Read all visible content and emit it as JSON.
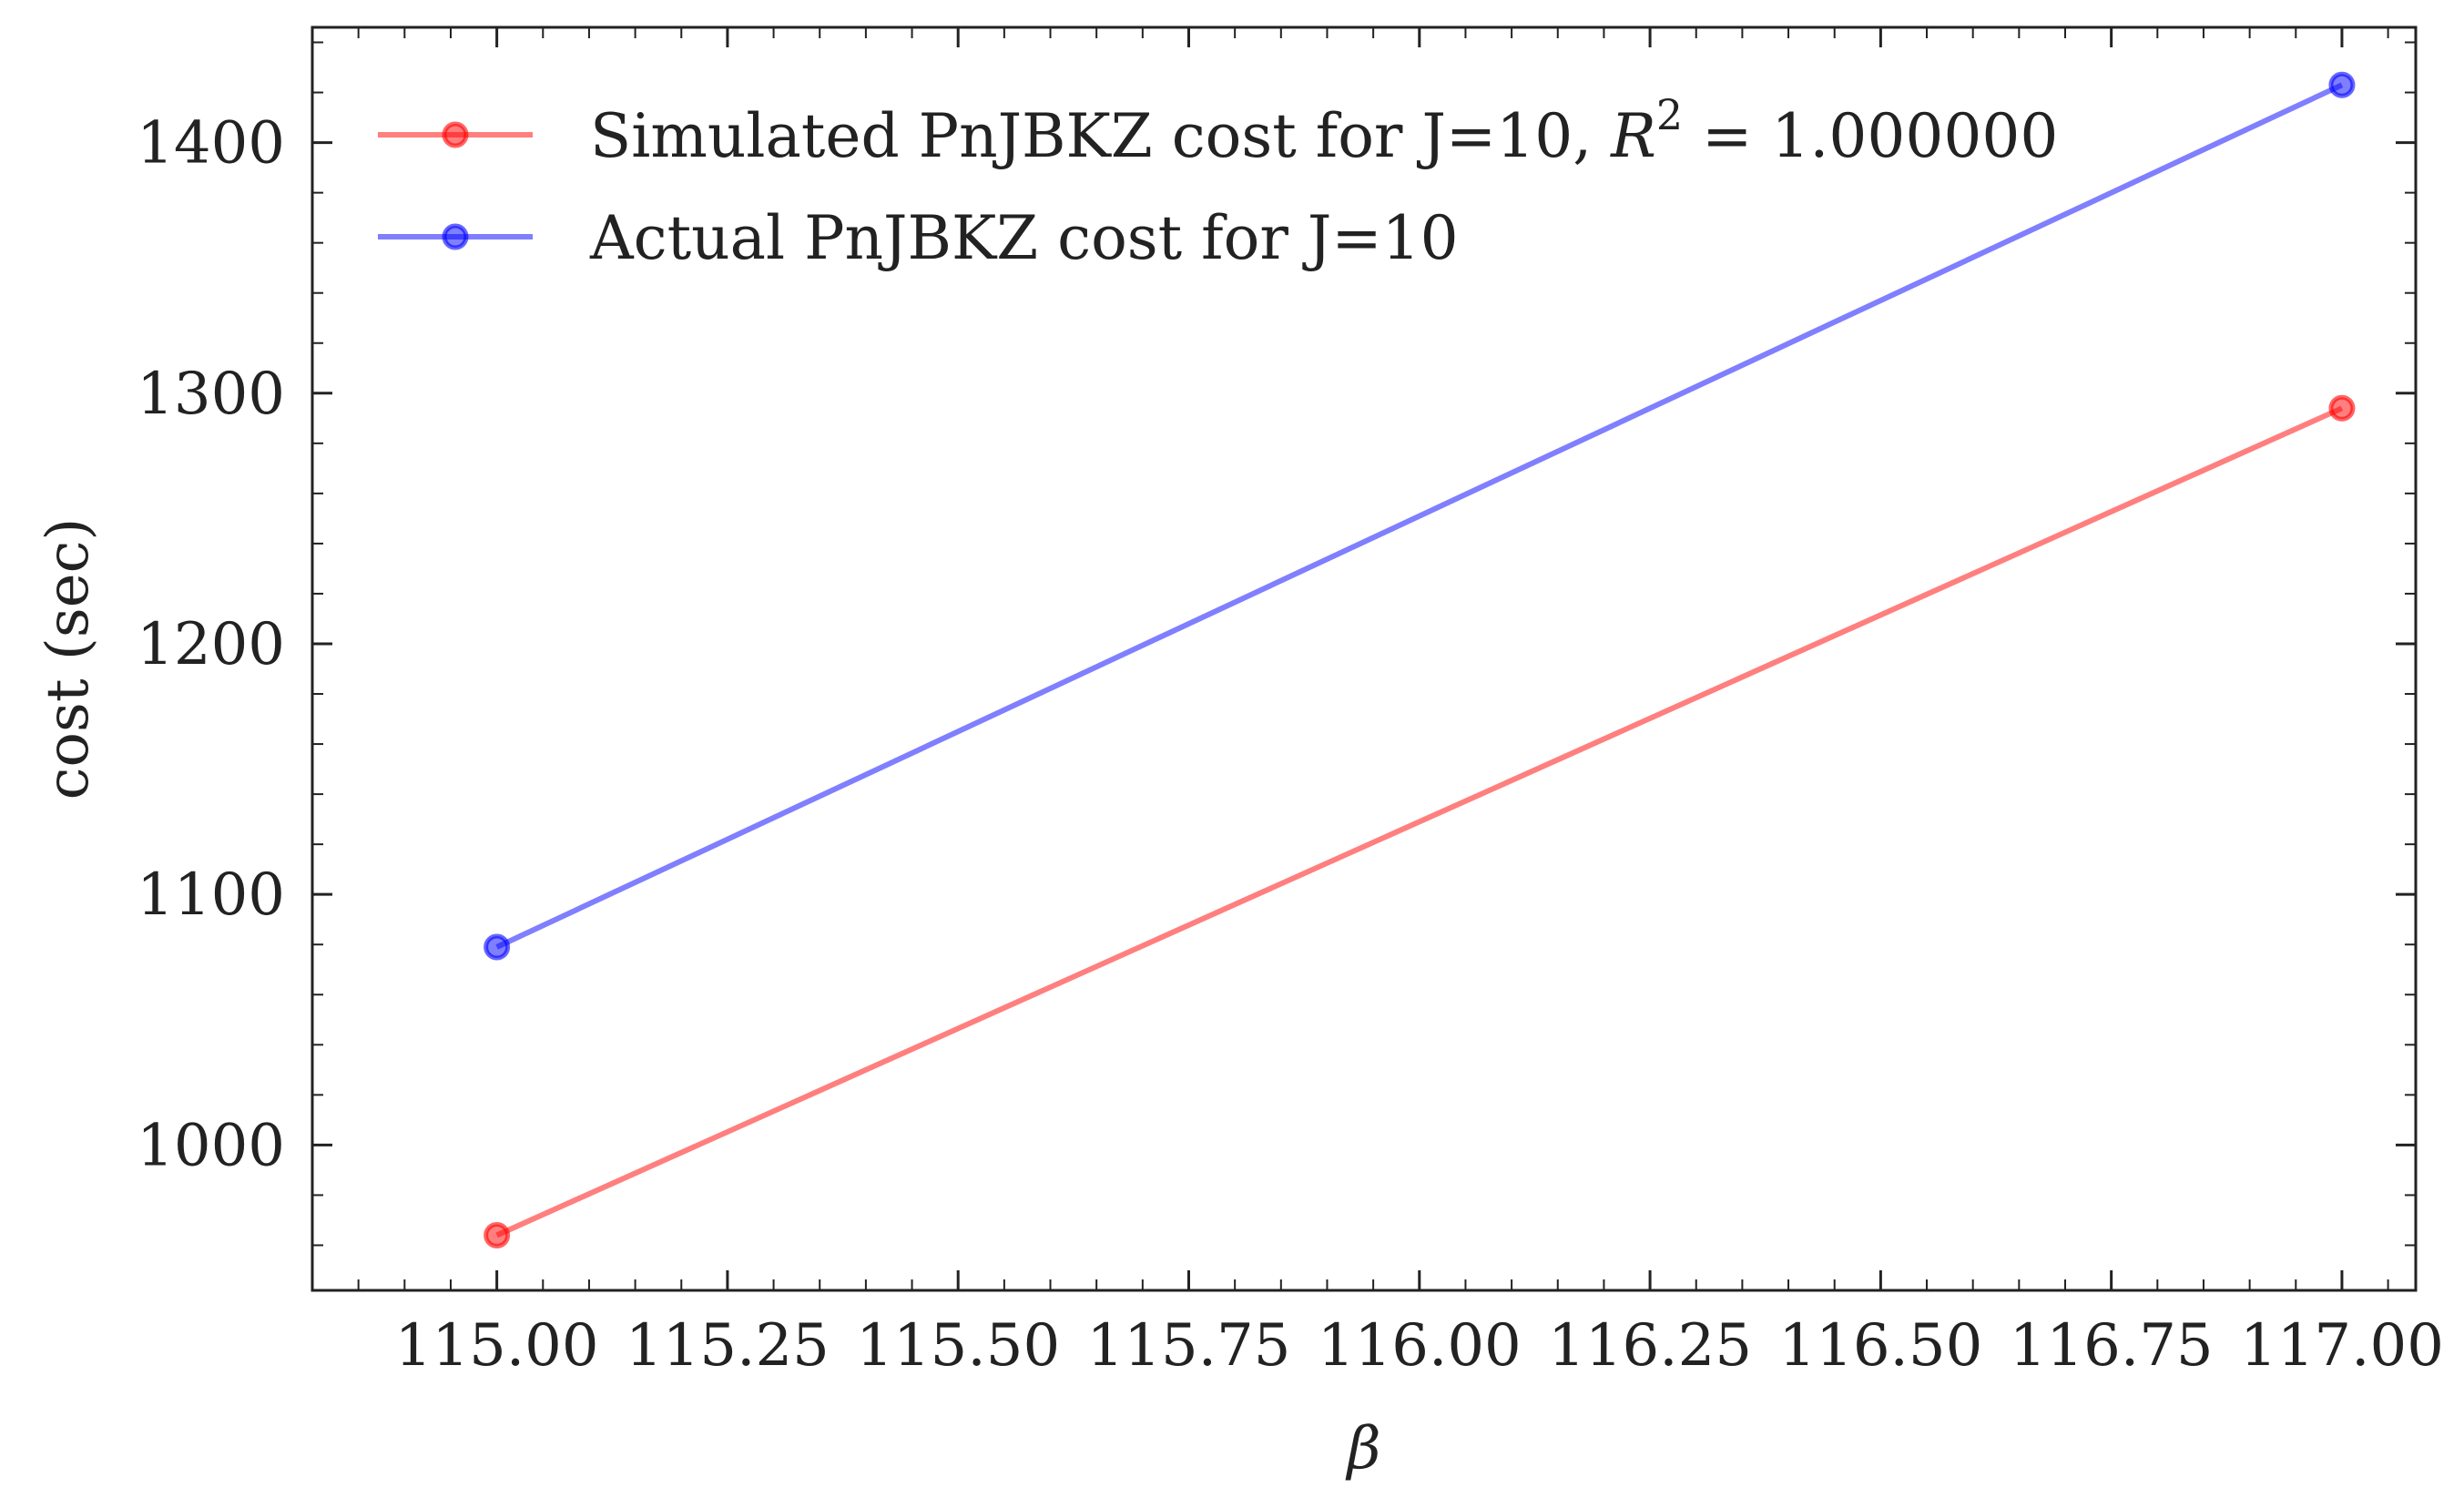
{
  "chart_data": {
    "type": "line",
    "xlabel": "β",
    "ylabel": "cost (sec)",
    "xlim": [
      114.8,
      117.08
    ],
    "ylim": [
      942,
      1446
    ],
    "xticks": [
      115.0,
      115.25,
      115.5,
      115.75,
      116.0,
      116.25,
      116.5,
      116.75,
      117.0
    ],
    "xtick_labels": [
      "115.00",
      "115.25",
      "115.50",
      "115.75",
      "116.00",
      "116.25",
      "116.50",
      "116.75",
      "117.00"
    ],
    "yticks": [
      1000,
      1100,
      1200,
      1300,
      1400
    ],
    "ytick_labels": [
      "1000",
      "1100",
      "1200",
      "1300",
      "1400"
    ],
    "legend_position": "top-left",
    "series": [
      {
        "name": "Simulated PnJBKZ cost for J=10, R",
        "name_sup": "2",
        "name_suffix": " = 1.000000",
        "color": "#ff0000",
        "x": [
          115,
          117
        ],
        "y": [
          964,
          1294
        ]
      },
      {
        "name": "Actual PnJBKZ cost for J=10",
        "color": "#0000ff",
        "x": [
          115,
          117
        ],
        "y": [
          1079,
          1423
        ]
      }
    ]
  }
}
